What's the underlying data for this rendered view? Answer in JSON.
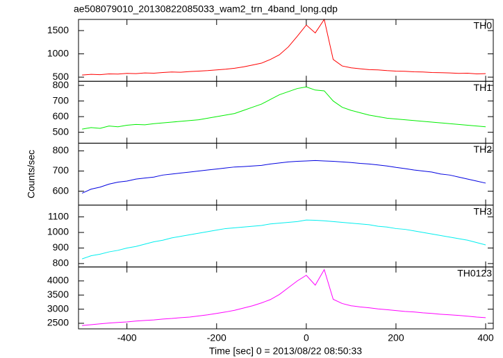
{
  "title": "ae508079010_20130822085033_wam2_trn_4band_long.qdp",
  "ylabel": "Counts/sec",
  "xlabel": "Time [sec] 0 = 2013/08/22 08:50:33",
  "chart_data": [
    {
      "type": "line",
      "label": "TH0",
      "color": "#ff0000",
      "x": [
        -500,
        -480,
        -460,
        -440,
        -420,
        -400,
        -380,
        -360,
        -340,
        -320,
        -300,
        -280,
        -260,
        -240,
        -220,
        -200,
        -180,
        -160,
        -140,
        -120,
        -100,
        -80,
        -60,
        -40,
        -20,
        0,
        20,
        40,
        60,
        80,
        100,
        120,
        140,
        160,
        180,
        200,
        220,
        240,
        260,
        280,
        300,
        320,
        340,
        360,
        380,
        400
      ],
      "values": [
        545,
        560,
        552,
        570,
        565,
        580,
        575,
        590,
        585,
        600,
        610,
        605,
        620,
        630,
        640,
        655,
        670,
        690,
        720,
        760,
        800,
        880,
        980,
        1150,
        1380,
        1620,
        1450,
        1740,
        880,
        740,
        700,
        680,
        660,
        655,
        640,
        630,
        625,
        615,
        610,
        600,
        595,
        590,
        580,
        585,
        570,
        575
      ],
      "xlim": [
        -508,
        417
      ],
      "xticks": [
        -400,
        -200,
        0,
        200,
        400
      ],
      "ylim": [
        410,
        1740
      ],
      "yticks": [
        500,
        1000,
        1500
      ]
    },
    {
      "type": "line",
      "label": "TH1",
      "color": "#00ee00",
      "x": [
        -500,
        -480,
        -460,
        -440,
        -420,
        -400,
        -380,
        -360,
        -340,
        -320,
        -300,
        -280,
        -260,
        -240,
        -220,
        -200,
        -180,
        -160,
        -140,
        -120,
        -100,
        -80,
        -60,
        -40,
        -20,
        0,
        20,
        40,
        60,
        80,
        100,
        120,
        140,
        160,
        180,
        200,
        220,
        240,
        260,
        280,
        300,
        320,
        340,
        360,
        380,
        400
      ],
      "values": [
        520,
        530,
        525,
        540,
        535,
        545,
        550,
        548,
        555,
        560,
        565,
        570,
        575,
        580,
        590,
        600,
        610,
        620,
        640,
        660,
        680,
        710,
        740,
        760,
        780,
        790,
        770,
        765,
        700,
        660,
        640,
        625,
        610,
        600,
        590,
        585,
        580,
        575,
        570,
        565,
        560,
        555,
        550,
        545,
        540,
        535
      ],
      "xlim": [
        -508,
        417
      ],
      "xticks": [
        -400,
        -200,
        0,
        200,
        400
      ],
      "ylim": [
        430,
        826
      ],
      "yticks": [
        500,
        600,
        700,
        800
      ]
    },
    {
      "type": "line",
      "label": "TH2",
      "color": "#0000e0",
      "x": [
        -500,
        -480,
        -460,
        -440,
        -420,
        -400,
        -380,
        -360,
        -340,
        -320,
        -300,
        -280,
        -260,
        -240,
        -220,
        -200,
        -180,
        -160,
        -140,
        -120,
        -100,
        -80,
        -60,
        -40,
        -20,
        0,
        20,
        40,
        60,
        80,
        100,
        120,
        140,
        160,
        180,
        200,
        220,
        240,
        260,
        280,
        300,
        320,
        340,
        360,
        380,
        400
      ],
      "values": [
        590,
        610,
        620,
        635,
        645,
        650,
        660,
        665,
        670,
        680,
        685,
        690,
        695,
        700,
        705,
        710,
        715,
        720,
        722,
        725,
        728,
        735,
        740,
        745,
        748,
        750,
        752,
        750,
        748,
        745,
        742,
        738,
        735,
        730,
        725,
        718,
        712,
        705,
        700,
        695,
        685,
        680,
        670,
        660,
        650,
        640
      ],
      "xlim": [
        -508,
        417
      ],
      "xticks": [
        -400,
        -200,
        0,
        200,
        400
      ],
      "ylim": [
        531,
        838
      ],
      "yticks": [
        600,
        700,
        800
      ]
    },
    {
      "type": "line",
      "label": "TH3",
      "color": "#00eeee",
      "x": [
        -500,
        -480,
        -460,
        -440,
        -420,
        -400,
        -380,
        -360,
        -340,
        -320,
        -300,
        -280,
        -260,
        -240,
        -220,
        -200,
        -180,
        -160,
        -140,
        -120,
        -100,
        -80,
        -60,
        -40,
        -20,
        0,
        20,
        40,
        60,
        80,
        100,
        120,
        140,
        160,
        180,
        200,
        220,
        240,
        260,
        280,
        300,
        320,
        340,
        360,
        380,
        400
      ],
      "values": [
        830,
        850,
        860,
        875,
        885,
        900,
        910,
        925,
        940,
        950,
        965,
        975,
        985,
        995,
        1005,
        1015,
        1025,
        1030,
        1035,
        1040,
        1045,
        1055,
        1060,
        1065,
        1070,
        1080,
        1078,
        1075,
        1070,
        1065,
        1060,
        1055,
        1050,
        1040,
        1035,
        1025,
        1020,
        1010,
        1000,
        990,
        980,
        970,
        960,
        950,
        935,
        920
      ],
      "xlim": [
        -508,
        417
      ],
      "xticks": [
        -400,
        -200,
        0,
        200,
        400
      ],
      "ylim": [
        778,
        1176
      ],
      "yticks": [
        800,
        900,
        1000,
        1100
      ]
    },
    {
      "type": "line",
      "label": "TH0123",
      "color": "#ff00ff",
      "x": [
        -500,
        -480,
        -460,
        -440,
        -420,
        -400,
        -380,
        -360,
        -340,
        -320,
        -300,
        -280,
        -260,
        -240,
        -220,
        -200,
        -180,
        -160,
        -140,
        -120,
        -100,
        -80,
        -60,
        -40,
        -20,
        0,
        20,
        40,
        60,
        80,
        100,
        120,
        140,
        160,
        180,
        200,
        220,
        240,
        260,
        280,
        300,
        320,
        340,
        360,
        380,
        400
      ],
      "values": [
        2420,
        2450,
        2480,
        2510,
        2530,
        2550,
        2580,
        2600,
        2620,
        2650,
        2670,
        2700,
        2720,
        2760,
        2800,
        2850,
        2900,
        2960,
        3040,
        3120,
        3220,
        3340,
        3520,
        3760,
        4000,
        4200,
        3850,
        4400,
        3350,
        3200,
        3120,
        3080,
        3050,
        3010,
        2980,
        2950,
        2920,
        2900,
        2870,
        2850,
        2820,
        2800,
        2780,
        2750,
        2720,
        2700
      ],
      "xlim": [
        -508,
        417
      ],
      "xticks": [
        -400,
        -200,
        0,
        200,
        400
      ],
      "ylim": [
        2303,
        4493
      ],
      "yticks": [
        2500,
        3000,
        3500,
        4000
      ]
    }
  ]
}
